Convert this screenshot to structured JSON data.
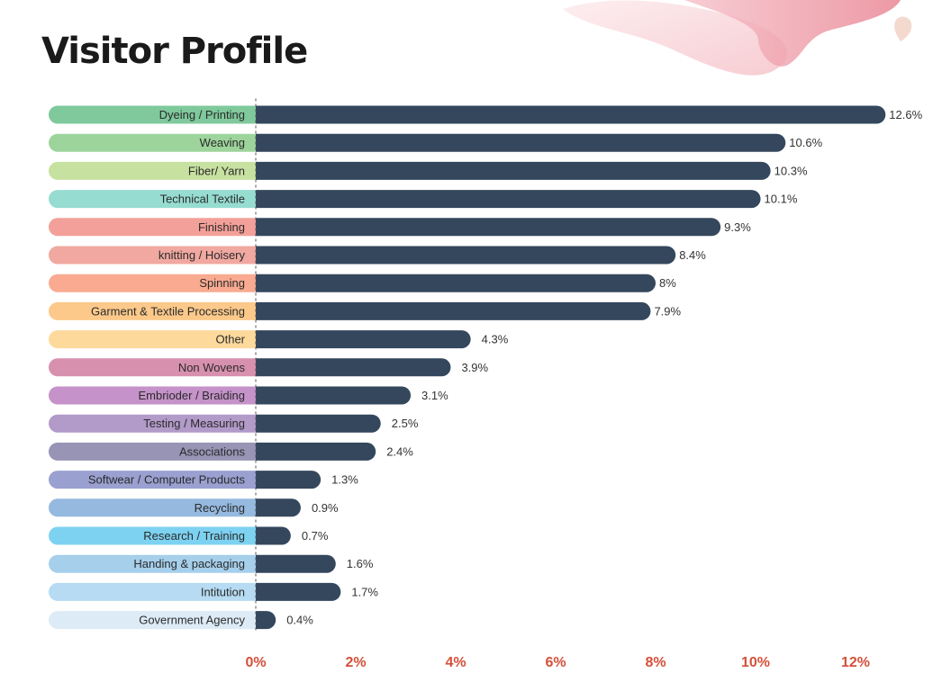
{
  "page": {
    "title": "Visitor Profile"
  },
  "chart_data": {
    "type": "bar",
    "orientation": "horizontal",
    "categories": [
      "Dyeing  / Printing",
      "Weaving",
      "Fiber/ Yarn",
      "Technical Textile",
      "Finishing",
      "knitting / Hoisery",
      "Spinning",
      "Garment & Textile Processing",
      "Other",
      "Non Wovens",
      "Embrioder / Braiding",
      "Testing / Measuring",
      "Associations",
      "Softwear / Computer Products",
      "Recycling",
      "Research / Training",
      "Handing & packaging",
      "Intitution",
      "Government Agency"
    ],
    "values": [
      12.6,
      10.6,
      10.3,
      10.1,
      9.3,
      8.4,
      8,
      7.9,
      4.3,
      3.9,
      3.1,
      2.5,
      2.4,
      1.3,
      0.9,
      0.7,
      1.6,
      1.7,
      0.4
    ],
    "value_labels": [
      "12.6%",
      "10.6%",
      "10.3%",
      "10.1%",
      "9.3%",
      "8.4%",
      "8%",
      "7.9%",
      "4.3%",
      "3.9%",
      "3.1%",
      "2.5%",
      "2.4%",
      "1.3%",
      "0.9%",
      "0.7%",
      "1.6%",
      "1.7%",
      "0.4%"
    ],
    "category_colors": [
      "#7fc99c",
      "#9dd49b",
      "#c7e1a0",
      "#96dcd1",
      "#f4a09a",
      "#f0a8a0",
      "#f9aa90",
      "#fcc98a",
      "#fdd99c",
      "#d790ad",
      "#c592c9",
      "#b29ac9",
      "#9794b5",
      "#9aa0d0",
      "#95b9df",
      "#7dd2f1",
      "#a5cfeb",
      "#b6dbf2",
      "#dcebf6"
    ],
    "bar_color": "#34475d",
    "x_ticks": [
      "0%",
      "2%",
      "4%",
      "6%",
      "8%",
      "10%",
      "12%"
    ],
    "xlim": [
      0,
      12
    ],
    "tick_color": "#d4503a",
    "grid": false,
    "zero_line": "dashed"
  }
}
